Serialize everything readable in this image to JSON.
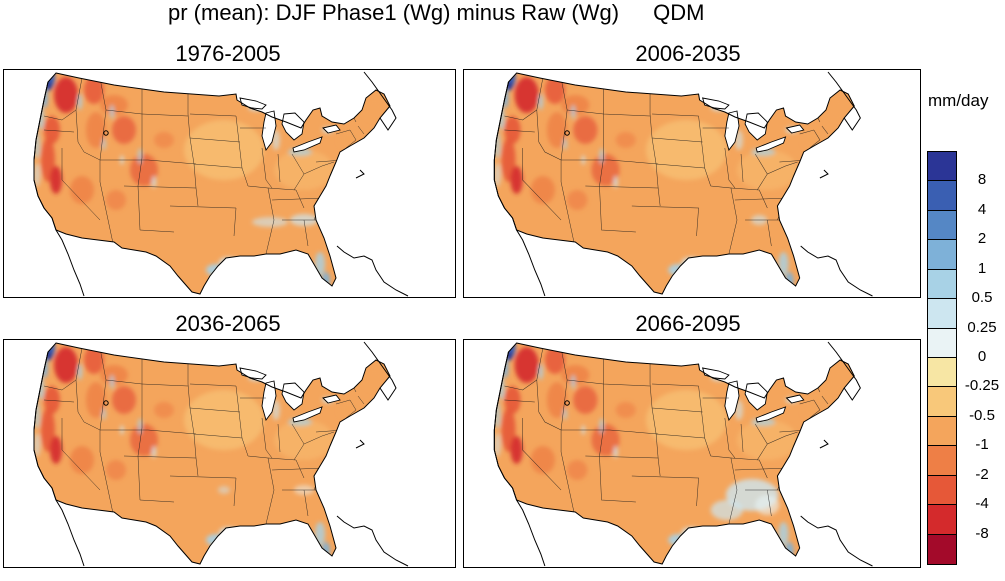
{
  "title": {
    "text": "pr (mean): DJF Phase1 (Wg) minus Raw (Wg)",
    "method": "QDM"
  },
  "panels": [
    {
      "label": "1976-2005"
    },
    {
      "label": "2006-2035"
    },
    {
      "label": "2036-2065"
    },
    {
      "label": "2066-2095"
    }
  ],
  "colorbar": {
    "units": "mm/day",
    "colors": [
      "#2b3596",
      "#3a5fb2",
      "#5587c5",
      "#7eb1d8",
      "#a8d2e6",
      "#cde6f0",
      "#eaf3f5",
      "#f7e6a4",
      "#f8c87a",
      "#f4a55c",
      "#ee7f46",
      "#e65838",
      "#d42a2c",
      "#a30a2a"
    ],
    "labels": [
      "8",
      "4",
      "2",
      "1",
      "0.5",
      "0.25",
      "0",
      "-0.25",
      "-0.5",
      "-1",
      "-2",
      "-4",
      "-8"
    ]
  }
}
